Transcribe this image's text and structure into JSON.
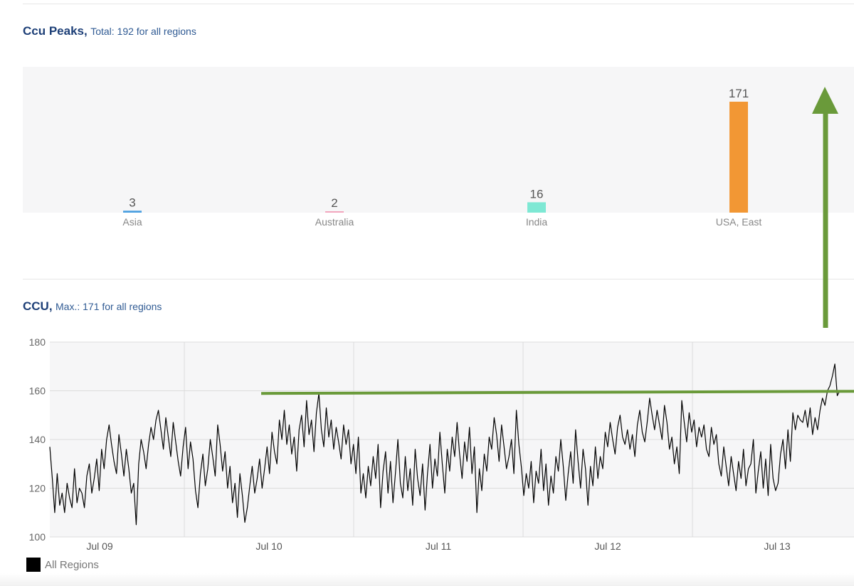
{
  "peaks_section": {
    "title": "Ccu Peaks,",
    "subtitle": "Total: 192 for all regions"
  },
  "ccu_section": {
    "title": "CCU,",
    "subtitle": "Max.: 171 for all regions"
  },
  "legend": {
    "label": "All Regions",
    "color": "#000000"
  },
  "annotations": {
    "arrow_color": "#6a9a3a",
    "reference_line_value": 159.5
  },
  "chart_data": [
    {
      "type": "bar",
      "categories": [
        "Asia",
        "Australia",
        "India",
        "USA, East"
      ],
      "values": [
        3,
        2,
        16,
        171
      ],
      "colors": [
        "#4a9fe0",
        "#f2a6bd",
        "#7ee8d4",
        "#f29734"
      ],
      "data_labels": [
        "3",
        "2",
        "16",
        "171"
      ],
      "ylim": [
        0,
        180
      ],
      "background": "#f6f6f7"
    },
    {
      "type": "line",
      "x_range": [
        "Jul 09",
        "Jul 13"
      ],
      "x_ticks": [
        "Jul 09",
        "Jul 10",
        "Jul 11",
        "Jul 12",
        "Jul 13"
      ],
      "y_ticks": [
        100,
        120,
        140,
        160,
        180
      ],
      "ylim": [
        100,
        180
      ],
      "grid": true,
      "series": [
        {
          "name": "All Regions",
          "color": "#000000",
          "values": [
            137,
            124,
            110,
            126,
            113,
            118,
            110,
            122,
            116,
            112,
            128,
            114,
            120,
            118,
            112,
            125,
            130,
            118,
            124,
            132,
            119,
            136,
            128,
            140,
            146,
            138,
            131,
            126,
            142,
            134,
            125,
            136,
            128,
            118,
            122,
            105,
            130,
            140,
            135,
            128,
            138,
            145,
            140,
            148,
            152,
            144,
            136,
            149,
            141,
            133,
            147,
            139,
            131,
            125,
            137,
            145,
            128,
            139,
            132,
            119,
            112,
            126,
            134,
            121,
            128,
            140,
            133,
            125,
            146,
            138,
            127,
            135,
            120,
            129,
            114,
            122,
            108,
            126,
            117,
            106,
            112,
            121,
            129,
            118,
            124,
            132,
            120,
            128,
            137,
            126,
            143,
            135,
            130,
            148,
            140,
            152,
            138,
            146,
            134,
            141,
            127,
            144,
            150,
            137,
            156,
            142,
            148,
            135,
            151,
            159,
            144,
            137,
            153,
            141,
            148,
            136,
            145,
            139,
            132,
            146,
            138,
            144,
            130,
            138,
            126,
            141,
            118,
            126,
            116,
            129,
            121,
            133,
            124,
            138,
            112,
            127,
            135,
            118,
            131,
            114,
            126,
            140,
            122,
            116,
            133,
            119,
            128,
            113,
            136,
            124,
            117,
            130,
            111,
            126,
            138,
            120,
            132,
            125,
            143,
            130,
            118,
            136,
            127,
            141,
            133,
            147,
            134,
            124,
            139,
            131,
            145,
            126,
            137,
            110,
            128,
            119,
            134,
            127,
            141,
            136,
            149,
            142,
            131,
            146,
            137,
            128,
            133,
            140,
            126,
            152,
            138,
            129,
            117,
            126,
            120,
            131,
            114,
            127,
            122,
            136,
            119,
            130,
            113,
            125,
            118,
            133,
            127,
            140,
            129,
            115,
            126,
            135,
            122,
            144,
            131,
            120,
            136,
            128,
            113,
            129,
            121,
            137,
            124,
            133,
            128,
            143,
            137,
            147,
            140,
            134,
            145,
            150,
            141,
            138,
            144,
            136,
            142,
            133,
            146,
            152,
            143,
            139,
            147,
            157,
            150,
            144,
            152,
            146,
            140,
            154,
            147,
            136,
            141,
            130,
            137,
            126,
            156,
            147,
            139,
            151,
            143,
            148,
            137,
            145,
            141,
            146,
            136,
            133,
            145,
            138,
            142,
            130,
            125,
            137,
            129,
            121,
            133,
            126,
            119,
            131,
            124,
            136,
            121,
            128,
            130,
            140,
            118,
            127,
            135,
            120,
            132,
            117,
            138,
            124,
            119,
            122,
            134,
            140,
            128,
            144,
            131,
            151,
            144,
            150,
            148,
            147,
            152,
            145,
            153,
            142,
            149,
            144,
            152,
            157,
            154,
            160,
            162,
            166,
            171,
            158,
            160
          ]
        }
      ]
    }
  ]
}
